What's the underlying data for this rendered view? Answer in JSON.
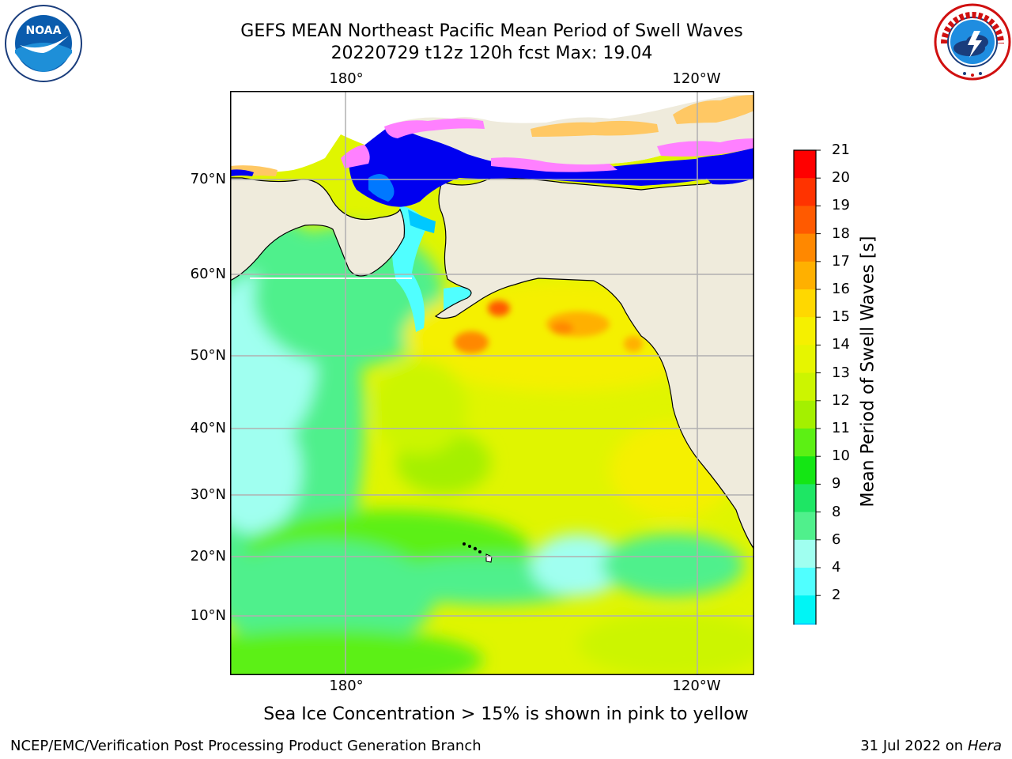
{
  "title": {
    "line1": "GEFS MEAN Northeast Pacific Mean Period of Swell Waves",
    "line2": "20220729 t12z 120h fcst   Max: 19.04"
  },
  "logos": {
    "left": {
      "icon": "noaa-logo",
      "text": "NOAA"
    },
    "right": {
      "icon": "nws-logo",
      "text": "NATIONAL WEATHER SERVICE"
    }
  },
  "map": {
    "lon_labels_top": [
      "180°",
      "120°W"
    ],
    "lon_labels_bottom": [
      "180°",
      "120°W"
    ],
    "lat_labels": [
      "70°N",
      "60°N",
      "50°N",
      "40°N",
      "30°N",
      "20°N",
      "10°N"
    ],
    "land_color": "#efebdc",
    "grid_color": "#b0b0b0"
  },
  "colorbar": {
    "title": "Mean Period of Swell Waves [s]",
    "ticks": [
      "21",
      "20",
      "19",
      "18",
      "17",
      "16",
      "15",
      "14",
      "13",
      "12",
      "11",
      "10",
      "9",
      "8",
      "6",
      "4",
      "2"
    ],
    "colors": [
      "#ff0000",
      "#ff3300",
      "#ff5a00",
      "#ff8800",
      "#ffb000",
      "#ffd800",
      "#f5f000",
      "#e6f500",
      "#ccf500",
      "#a4f000",
      "#5cf014",
      "#14e614",
      "#1ee664",
      "#50f08c",
      "#a0fff0",
      "#50ffff",
      "#00f5f5",
      "#00c8ff",
      "#0078ff",
      "#0000f0"
    ]
  },
  "footnote": "Sea Ice Concentration > 15% is shown in pink to yellow",
  "credits": {
    "left": "NCEP/EMC/Verification Post Processing Product Generation Branch",
    "right_date": "31 Jul 2022 on ",
    "right_machine": "Hera"
  }
}
